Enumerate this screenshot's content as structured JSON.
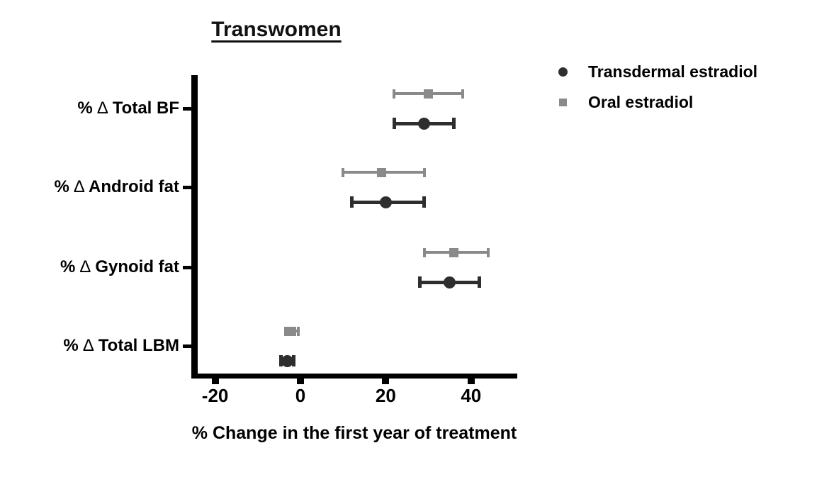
{
  "title": "Transwomen",
  "xlabel": "% Change in the first year of treatment",
  "legend": [
    {
      "label": "Transdermal estradiol",
      "marker": "circle",
      "color": "#2e2e2e"
    },
    {
      "label": "Oral estradiol",
      "marker": "square",
      "color": "#8a8a8a"
    }
  ],
  "colors": {
    "axis": "#000000",
    "text": "#000000",
    "transdermal": "#2e2e2e",
    "oral": "#8a8a8a"
  },
  "chart_data": {
    "type": "scatter",
    "subtype": "horizontal-point-estimates-with-error-bars",
    "title": "Transwomen",
    "xlabel": "% Change in the first year of treatment",
    "ylabel": "",
    "categories": [
      "% ∆ Total BF",
      "% ∆ Android fat",
      "% ∆ Gynoid fat",
      "% ∆ Total LBM"
    ],
    "x_ticks": [
      -20,
      0,
      20,
      40
    ],
    "xlim": [
      -25,
      50
    ],
    "grid": false,
    "legend_position": "top-right",
    "series": [
      {
        "name": "Transdermal estradiol",
        "marker": "circle",
        "color": "#2e2e2e",
        "values": [
          29,
          20,
          35,
          -3
        ],
        "ci_low": [
          22,
          12,
          28,
          -4.5
        ],
        "ci_high": [
          36,
          29,
          42,
          -1.5
        ]
      },
      {
        "name": "Oral estradiol",
        "marker": "square",
        "color": "#8a8a8a",
        "values": [
          30,
          19,
          36,
          -2
        ],
        "ci_low": [
          22,
          10,
          29,
          -3.5
        ],
        "ci_high": [
          38,
          29,
          44,
          -0.5
        ]
      }
    ]
  }
}
